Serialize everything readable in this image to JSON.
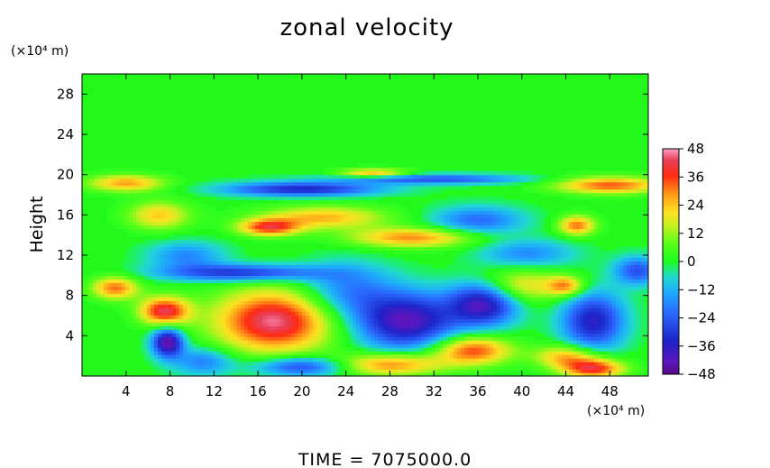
{
  "chart_data": {
    "type": "heatmap",
    "title": "zonal velocity",
    "ylabel": "Height",
    "xlabel": "",
    "x_unit": "(×10⁴ m)",
    "y_unit": "(×10⁴ m)",
    "footer": "TIME  =  7075000.0",
    "xlim": [
      0,
      51.5
    ],
    "ylim": [
      0,
      30
    ],
    "x_ticks": [
      4,
      8,
      12,
      16,
      20,
      24,
      28,
      32,
      36,
      40,
      44,
      48
    ],
    "y_ticks": [
      4,
      8,
      12,
      16,
      20,
      24,
      28
    ],
    "x_tick_labels": [
      "4",
      "8",
      "12",
      "16",
      "20",
      "24",
      "28",
      "32",
      "36",
      "40",
      "44",
      "48"
    ],
    "y_tick_labels": [
      "4",
      "8",
      "12",
      "16",
      "20",
      "24",
      "28"
    ],
    "colorbar": {
      "min": -48,
      "max": 48,
      "tick_values": [
        48,
        36,
        24,
        12,
        0,
        -12,
        -24,
        -36,
        -48
      ],
      "tick_labels": [
        "48",
        "36",
        "24",
        "12",
        "0",
        "−12",
        "−24",
        "−36",
        "−48"
      ]
    },
    "field_features": [
      {
        "x": 20.0,
        "y": 18.6,
        "value": -34,
        "sx": 5.0,
        "sy": 0.5
      },
      {
        "x": 32.0,
        "y": 19.6,
        "value": -26,
        "sx": 6.0,
        "sy": 0.35
      },
      {
        "x": 48.0,
        "y": 19.0,
        "value": 34,
        "sx": 3.5,
        "sy": 0.6
      },
      {
        "x": 26.5,
        "y": 20.2,
        "value": 28,
        "sx": 2.2,
        "sy": 0.3
      },
      {
        "x": 4.0,
        "y": 19.2,
        "value": 28,
        "sx": 2.5,
        "sy": 0.6
      },
      {
        "x": 17.0,
        "y": 14.8,
        "value": 36,
        "sx": 2.0,
        "sy": 0.6
      },
      {
        "x": 30.0,
        "y": 13.8,
        "value": 30,
        "sx": 4.0,
        "sy": 0.7
      },
      {
        "x": 22.0,
        "y": 15.8,
        "value": 26,
        "sx": 4.0,
        "sy": 0.8
      },
      {
        "x": 14.5,
        "y": 10.3,
        "value": -32,
        "sx": 5.0,
        "sy": 0.6
      },
      {
        "x": 36.0,
        "y": 15.5,
        "value": -22,
        "sx": 3.0,
        "sy": 1.0
      },
      {
        "x": 45.0,
        "y": 15.0,
        "value": 32,
        "sx": 1.2,
        "sy": 0.7
      },
      {
        "x": 7.0,
        "y": 16.0,
        "value": 24,
        "sx": 2.0,
        "sy": 1.0
      },
      {
        "x": 50.5,
        "y": 10.5,
        "value": -26,
        "sx": 1.5,
        "sy": 1.0
      },
      {
        "x": 17.5,
        "y": 5.5,
        "value": 46,
        "sx": 3.8,
        "sy": 2.2
      },
      {
        "x": 7.5,
        "y": 6.5,
        "value": 42,
        "sx": 1.6,
        "sy": 1.0
      },
      {
        "x": 7.8,
        "y": 3.4,
        "value": -46,
        "sx": 1.0,
        "sy": 1.0
      },
      {
        "x": 29.5,
        "y": 5.5,
        "value": -42,
        "sx": 3.2,
        "sy": 2.0
      },
      {
        "x": 36.5,
        "y": 7.2,
        "value": -40,
        "sx": 2.2,
        "sy": 1.5
      },
      {
        "x": 35.5,
        "y": 2.6,
        "value": 36,
        "sx": 2.5,
        "sy": 1.0
      },
      {
        "x": 28.0,
        "y": 1.2,
        "value": 32,
        "sx": 3.5,
        "sy": 0.8
      },
      {
        "x": 46.5,
        "y": 5.5,
        "value": -36,
        "sx": 2.0,
        "sy": 2.0
      },
      {
        "x": 46.5,
        "y": 0.8,
        "value": 40,
        "sx": 2.0,
        "sy": 0.7
      },
      {
        "x": 44.0,
        "y": 2.0,
        "value": 26,
        "sx": 2.0,
        "sy": 0.8
      },
      {
        "x": 20.0,
        "y": 1.0,
        "value": -30,
        "sx": 3.0,
        "sy": 0.7
      },
      {
        "x": 11.0,
        "y": 1.5,
        "value": -20,
        "sx": 2.0,
        "sy": 1.0
      },
      {
        "x": 40.0,
        "y": 9.0,
        "value": 22,
        "sx": 2.5,
        "sy": 1.2
      },
      {
        "x": 44.0,
        "y": 9.0,
        "value": 28,
        "sx": 1.2,
        "sy": 0.7
      },
      {
        "x": 24.0,
        "y": 8.5,
        "value": -20,
        "sx": 3.0,
        "sy": 2.0
      },
      {
        "x": 3.0,
        "y": 8.8,
        "value": 32,
        "sx": 1.5,
        "sy": 0.8
      },
      {
        "x": 9.5,
        "y": 12.0,
        "value": -18,
        "sx": 2.5,
        "sy": 1.0
      },
      {
        "x": 40.5,
        "y": 12.2,
        "value": -18,
        "sx": 3.0,
        "sy": 1.0
      }
    ]
  }
}
